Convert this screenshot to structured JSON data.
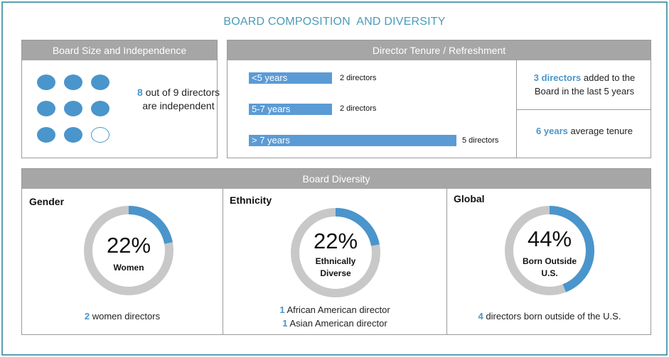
{
  "title": "BOARD COMPOSITION  AND DIVERSITY",
  "colors": {
    "accent": "#4a95cc",
    "bar": "#5b9bd5",
    "header": "#a6a6a6",
    "ring": "#c8c8c8",
    "border": "#5b9fb0"
  },
  "board_size": {
    "header": "Board Size and Independence",
    "independent_count": 8,
    "total_directors": 9,
    "independent_num": "8",
    "independent_rest": " out of 9 directors are independent"
  },
  "tenure": {
    "header": "Director Tenure / Refreshment",
    "bars": [
      {
        "label": "<5 years",
        "count_label": "2 directors",
        "count": 2
      },
      {
        "label": "5-7 years",
        "count_label": "2 directors",
        "count": 2
      },
      {
        "label": "> 7 years",
        "count_label": "5 directors",
        "count": 5
      }
    ],
    "added_num": "3 directors",
    "added_rest": " added to the Board in the last 5 years",
    "avg_num": "6 years",
    "avg_rest": " average tenure"
  },
  "diversity": {
    "header": "Board Diversity",
    "gender": {
      "title": "Gender",
      "percent": "22%",
      "fraction": 0.22,
      "label": "Women",
      "cap1_num": "2",
      "cap1_rest": " women  directors"
    },
    "ethnicity": {
      "title": "Ethnicity",
      "percent": "22%",
      "fraction": 0.22,
      "label_line1": "Ethnically",
      "label_line2": "Diverse",
      "cap1_num": "1",
      "cap1_rest": " African American director",
      "cap2_num": "1",
      "cap2_rest": " Asian American director"
    },
    "global": {
      "title": "Global",
      "percent": "44%",
      "fraction": 0.44,
      "label_line1": "Born Outside",
      "label_line2": "U.S.",
      "cap1_num": "4",
      "cap1_rest": " directors born outside of the U.S."
    }
  }
}
